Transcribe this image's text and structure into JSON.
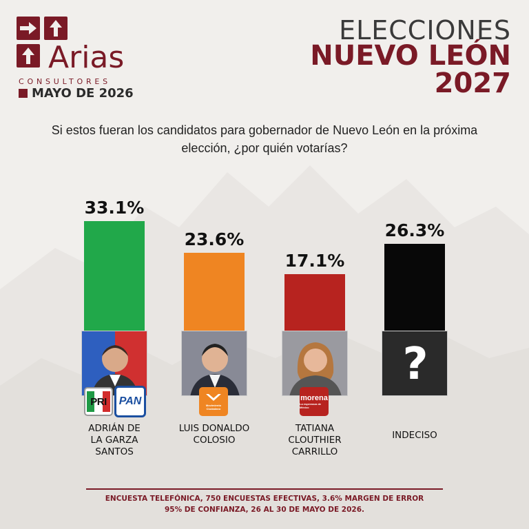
{
  "brand": {
    "name": "Arias",
    "subtitle": "CONSULTORES",
    "date": "MAYO DE 2026"
  },
  "header": {
    "line1": "ELECCIONES",
    "line2": "NUEVO LEÓN",
    "line3": "2027"
  },
  "question": "Si estos fueran los candidatos para gobernador de Nuevo León en la próxima elección, ¿por quién votarías?",
  "chart_data": {
    "type": "bar",
    "categories": [
      "ADRIÁN DE LA GARZA SANTOS",
      "LUIS DONALDO COLOSIO",
      "TATIANA CLOUTHIER CARRILLO",
      "INDECISO"
    ],
    "values": [
      33.1,
      23.6,
      17.1,
      26.3
    ],
    "value_labels": [
      "33.1%",
      "23.6%",
      "17.1%",
      "26.3%"
    ],
    "colors": [
      "#21a84a",
      "#ef8522",
      "#b7231f",
      "#080808"
    ],
    "name_lines": [
      [
        "ADRIÁN DE",
        "LA GARZA",
        "SANTOS"
      ],
      [
        "LUIS DONALDO",
        "COLOSIO"
      ],
      [
        "TATIANA",
        "CLOUTHIER",
        "CARRILLO"
      ],
      [
        "INDECISO"
      ]
    ],
    "party_labels": {
      "pri": "PRI",
      "pan": "PAN",
      "mc_small": "Movimiento Ciudadano",
      "morena": "morena",
      "morena_small": "La esperanza de México"
    },
    "photo_backgrounds": [
      "#c83232",
      "#888a96",
      "#9a9aa0",
      "#2a2a2a"
    ],
    "unknown_symbol": "?"
  },
  "footer": {
    "line1": "ENCUESTA TELEFÓNICA, 750 ENCUESTAS EFECTIVAS, 3.6%  MARGEN DE ERROR",
    "line2": "95% DE CONFIANZA, 26 AL 30 DE MAYO DE 2026."
  }
}
